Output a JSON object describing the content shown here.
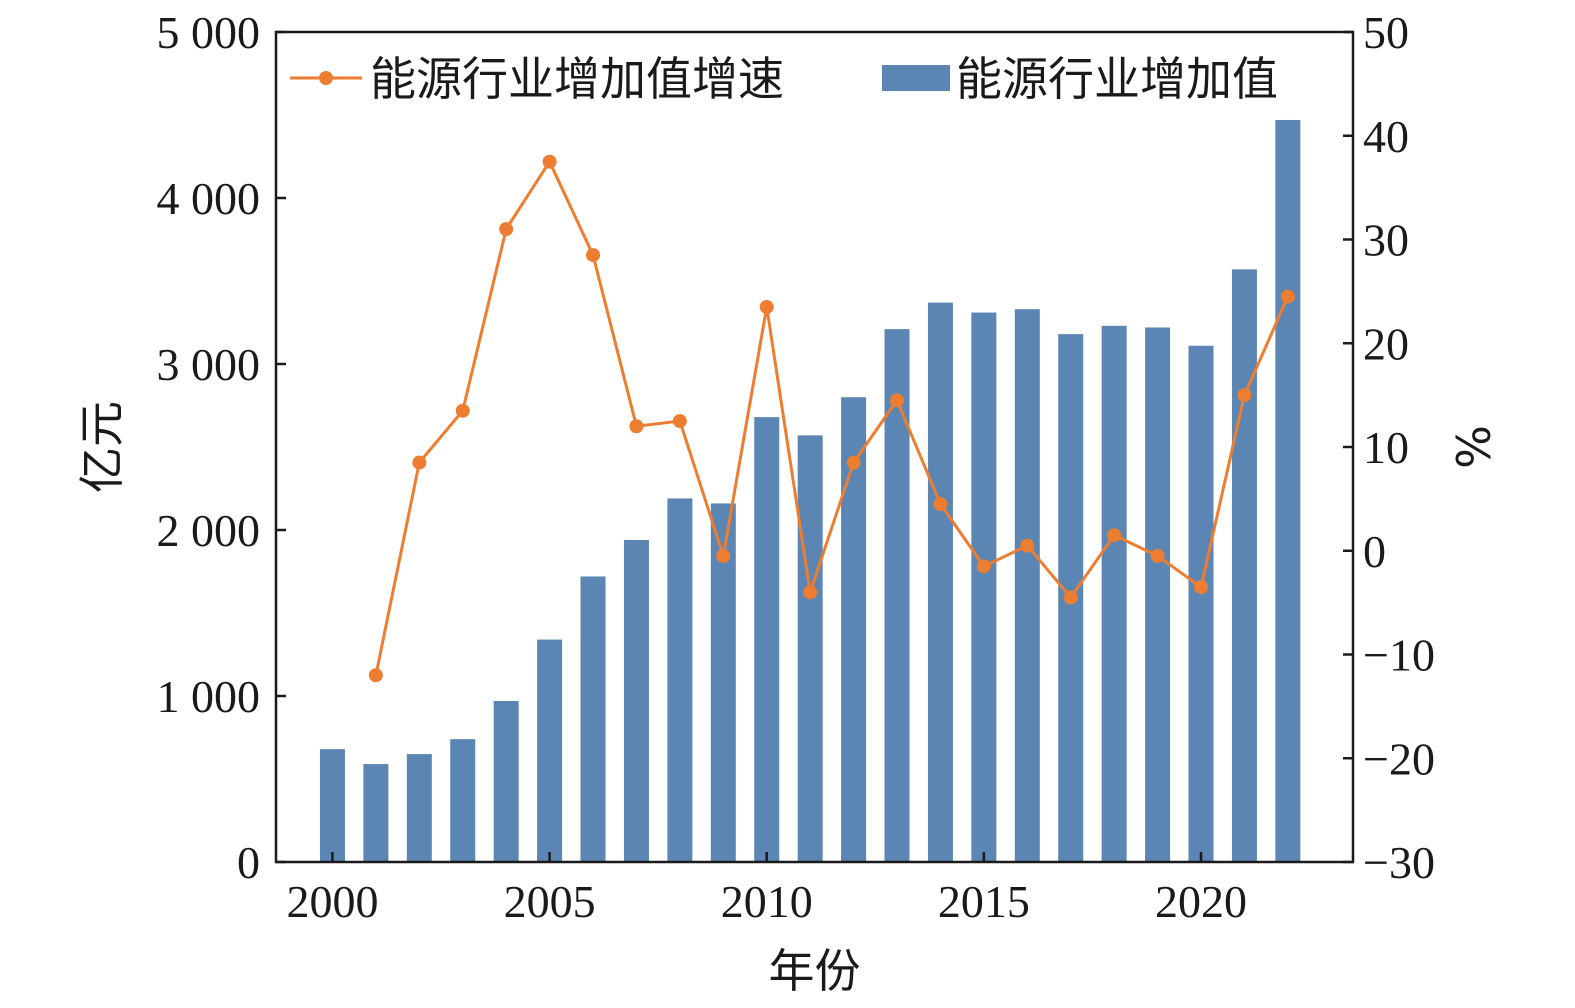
{
  "chart_data": {
    "type": "bar",
    "x": [
      2000,
      2001,
      2002,
      2003,
      2004,
      2005,
      2006,
      2007,
      2008,
      2009,
      2010,
      2011,
      2012,
      2013,
      2014,
      2015,
      2016,
      2017,
      2018,
      2019,
      2020,
      2021,
      2022
    ],
    "series": [
      {
        "name": "能源行业增加值",
        "type": "bar",
        "axis": "left",
        "color": "#5b86b3",
        "values": [
          680,
          590,
          650,
          740,
          970,
          1340,
          1720,
          1940,
          2190,
          2160,
          2680,
          2570,
          2800,
          3210,
          3370,
          3310,
          3330,
          3180,
          3230,
          3220,
          3110,
          3570,
          4470
        ]
      },
      {
        "name": "能源行业增加值增速",
        "type": "line",
        "axis": "right",
        "color": "#ed7d31",
        "values": [
          null,
          -12,
          8.5,
          13.5,
          31,
          37.5,
          28.5,
          12,
          12.5,
          -0.5,
          23.5,
          -4,
          8.5,
          14.5,
          4.5,
          -1.5,
          0.5,
          -4.5,
          1.5,
          -0.5,
          -3.5,
          15,
          24.5
        ]
      }
    ],
    "xlabel": "年份",
    "ylabel": "亿元",
    "y2label": "%",
    "xlim": [
      1998.7,
      2023.5
    ],
    "ylim": [
      0,
      5000
    ],
    "y2lim": [
      -30,
      50
    ],
    "xticks": [
      2000,
      2005,
      2010,
      2015,
      2020
    ],
    "xtick_labels": [
      "2000",
      "2005",
      "2010",
      "2015",
      "2020"
    ],
    "yticks": [
      0,
      1000,
      2000,
      3000,
      4000,
      5000
    ],
    "ytick_labels": [
      "0",
      "1 000",
      "2 000",
      "3 000",
      "4 000",
      "5 000"
    ],
    "y2ticks": [
      -30,
      -20,
      -10,
      0,
      10,
      20,
      30,
      40,
      50
    ],
    "y2tick_labels": [
      "−30",
      "−20",
      "−10",
      "0",
      "10",
      "20",
      "30",
      "40",
      "50"
    ],
    "grid": false,
    "legend_position": "top",
    "legend_order": [
      "能源行业增加值增速",
      "能源行业增加值"
    ]
  }
}
